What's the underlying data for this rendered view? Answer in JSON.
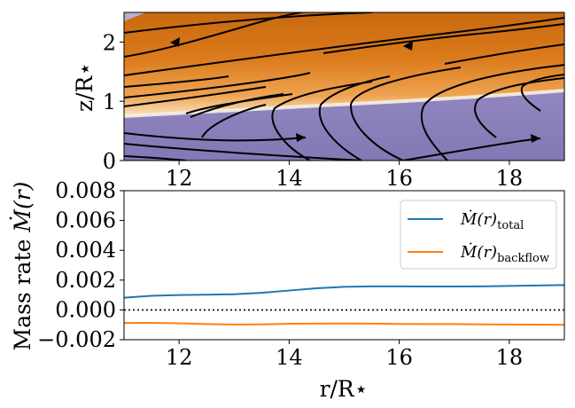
{
  "chart_data": [
    {
      "type": "heatmap",
      "title": "",
      "xlabel": "",
      "ylabel": "z/R⋆",
      "xlim": [
        11,
        19
      ],
      "ylim": [
        0,
        2.5
      ],
      "xticks": [
        "12",
        "14",
        "16",
        "18"
      ],
      "yticks": [
        "0",
        "1",
        "2"
      ],
      "colors": {
        "outflow": "#e07b1a",
        "background": "#8c7fb8",
        "interface": "#f3ede6"
      },
      "interface_z": [
        0.75,
        1.2
      ],
      "description_regions": [
        "orange upper flow",
        "purple lower flow"
      ]
    },
    {
      "type": "line",
      "title": "",
      "xlabel": "r/R⋆",
      "ylabel": "Mass rate Ṁ(r)",
      "xlim": [
        11,
        19
      ],
      "ylim": [
        -0.002,
        0.008
      ],
      "xticks": [
        "12",
        "14",
        "16",
        "18"
      ],
      "yticks": [
        "−0.002",
        "0.000",
        "0.002",
        "0.004",
        "0.006",
        "0.008"
      ],
      "legend_position": "top-right",
      "reference_line": {
        "y": 0.0,
        "style": "dotted",
        "color": "#000000"
      },
      "x": [
        11,
        11.5,
        12,
        12.5,
        13,
        13.5,
        14,
        14.5,
        15,
        15.5,
        16,
        16.5,
        17,
        17.5,
        18,
        18.5,
        19
      ],
      "series": [
        {
          "name": "Ṁ(r)",
          "subscript": "total",
          "color": "#1f77b4",
          "values": [
            0.00082,
            0.00095,
            0.001,
            0.00102,
            0.00105,
            0.00115,
            0.0013,
            0.00145,
            0.00155,
            0.00158,
            0.00158,
            0.00157,
            0.00157,
            0.00158,
            0.00161,
            0.00164,
            0.00167
          ]
        },
        {
          "name": "Ṁ(r)",
          "subscript": "backflow",
          "color": "#ff7f0e",
          "values": [
            -0.00088,
            -0.00087,
            -0.0009,
            -0.00095,
            -0.00098,
            -0.00097,
            -0.00093,
            -0.00092,
            -0.00091,
            -0.00092,
            -0.00094,
            -0.00095,
            -0.00095,
            -0.00097,
            -0.00098,
            -0.00099,
            -0.001
          ]
        }
      ]
    }
  ]
}
